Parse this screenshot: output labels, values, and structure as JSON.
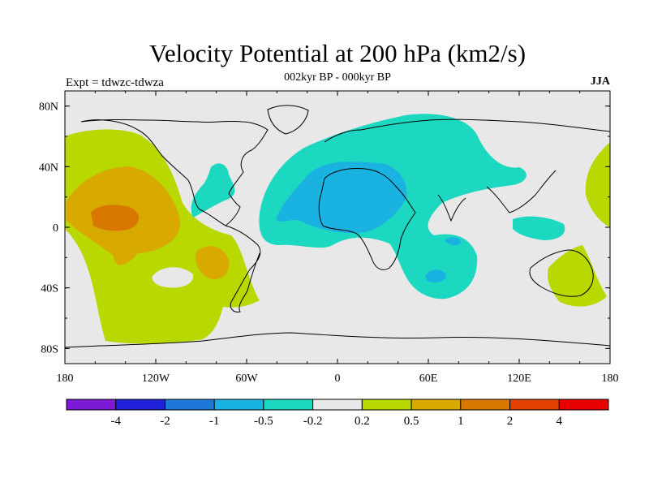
{
  "title": "Velocity Potential at 200 hPa (km2/s)",
  "subtitle": "002kyr BP - 000kyr BP",
  "left_label": "Expt = tdwzc-tdwza",
  "right_label": "JJA",
  "axes": {
    "x_ticks": [
      "180",
      "120W",
      "60W",
      "0",
      "60E",
      "120E",
      "180"
    ],
    "y_ticks": [
      "80N",
      "40N",
      "0",
      "40S",
      "80S"
    ]
  },
  "colorbar": {
    "colors": [
      "#7c1ad6",
      "#2020d8",
      "#1e78d8",
      "#1ab2e0",
      "#1cd8c0",
      "#e8e8e8",
      "#b8d800",
      "#d8aa00",
      "#d87800",
      "#e04000",
      "#e80000"
    ],
    "labels": [
      "-4",
      "-2",
      "-1",
      "-0.5",
      "-0.2",
      "0.2",
      "0.5",
      "1",
      "2",
      "4"
    ]
  },
  "map_colors": {
    "background": "#e8e8e8",
    "neg_02": "#1cd8c0",
    "neg_05": "#1ab2e0",
    "pos_02": "#b8d800",
    "pos_05": "#d8aa00",
    "pos_1": "#d87800"
  }
}
